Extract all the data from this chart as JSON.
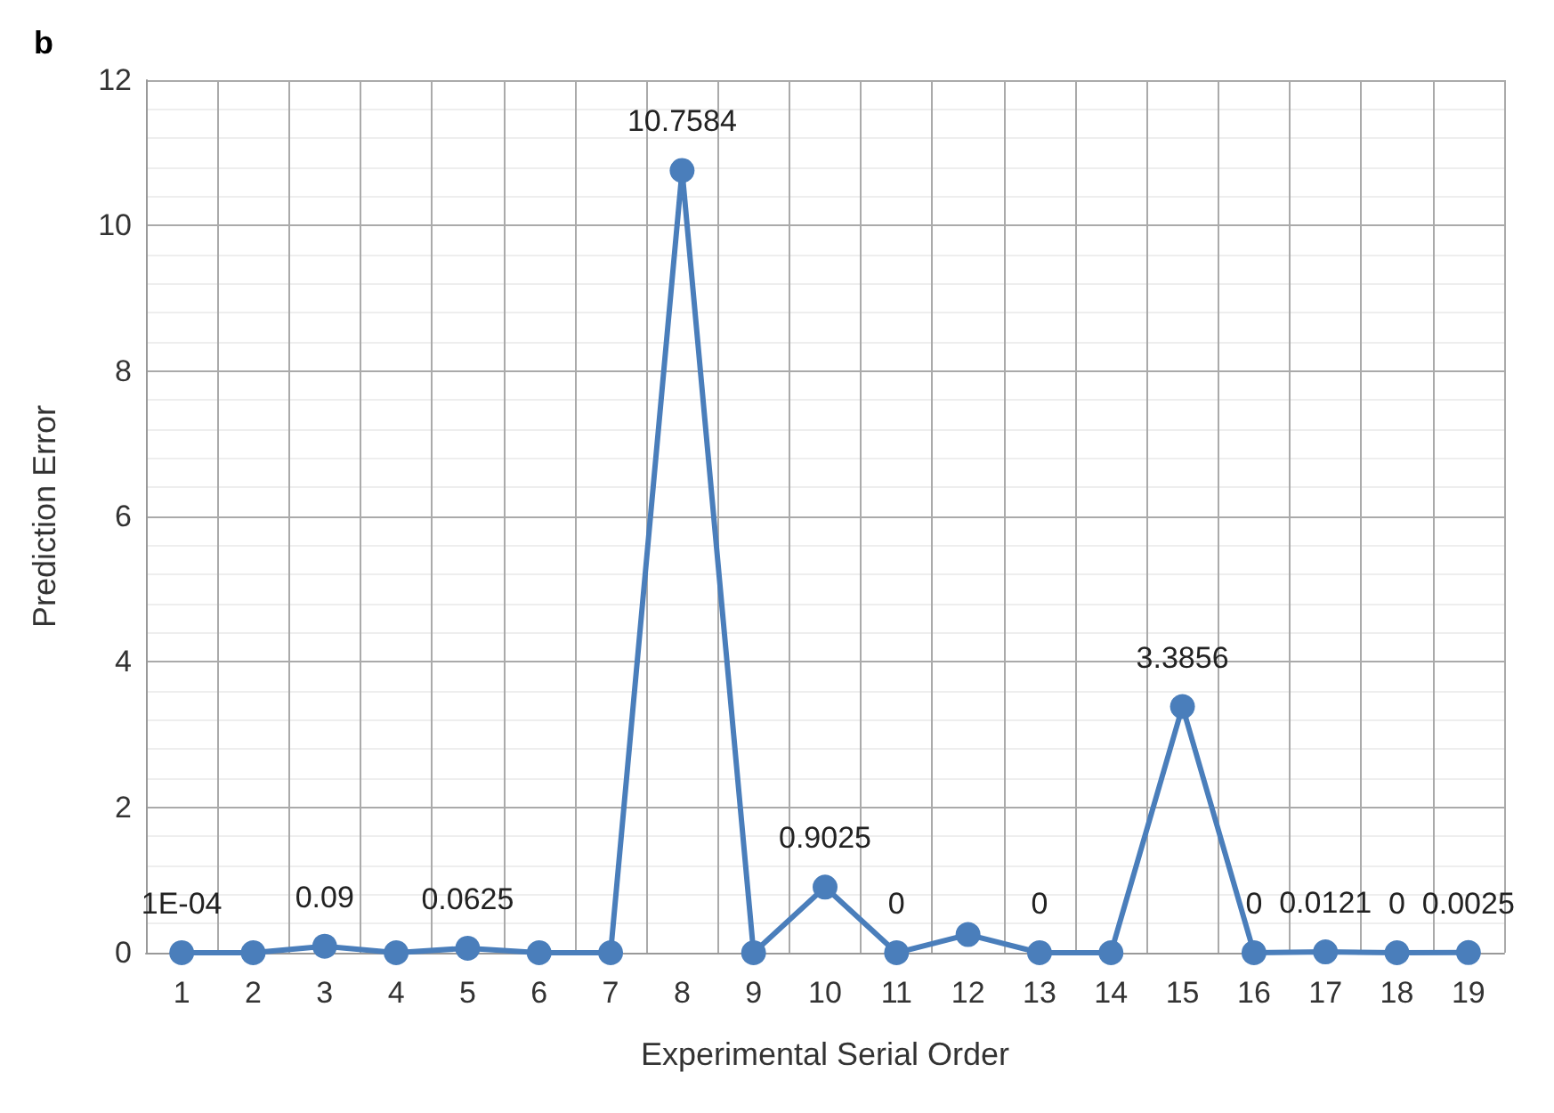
{
  "chart_data": {
    "type": "line",
    "title": "b",
    "xlabel": "Experimental Serial Order",
    "ylabel": "Prediction Error",
    "categories": [
      "1",
      "2",
      "3",
      "4",
      "5",
      "6",
      "7",
      "8",
      "9",
      "10",
      "11",
      "12",
      "13",
      "14",
      "15",
      "16",
      "17",
      "18",
      "19"
    ],
    "series": [
      {
        "color": "#4a7ebb",
        "values": [
          0.0001,
          0,
          0.09,
          0,
          0.0625,
          0,
          0,
          10.7584,
          0,
          0.9025,
          0,
          0.25,
          0,
          0,
          3.3856,
          0,
          0.0121,
          0,
          0.0025
        ],
        "value_labels": [
          "1E-04",
          null,
          "0.09",
          null,
          "0.0625",
          null,
          null,
          "10.7584",
          null,
          "0.9025",
          "0",
          null,
          "0",
          null,
          "3.3856",
          "0",
          "0.0121",
          "0",
          "0.0025"
        ]
      }
    ],
    "ylim": [
      0,
      12
    ],
    "yticks": [
      0,
      2,
      4,
      6,
      8,
      10,
      12
    ],
    "grid": true,
    "marker": "circle",
    "line_style": "solid"
  }
}
